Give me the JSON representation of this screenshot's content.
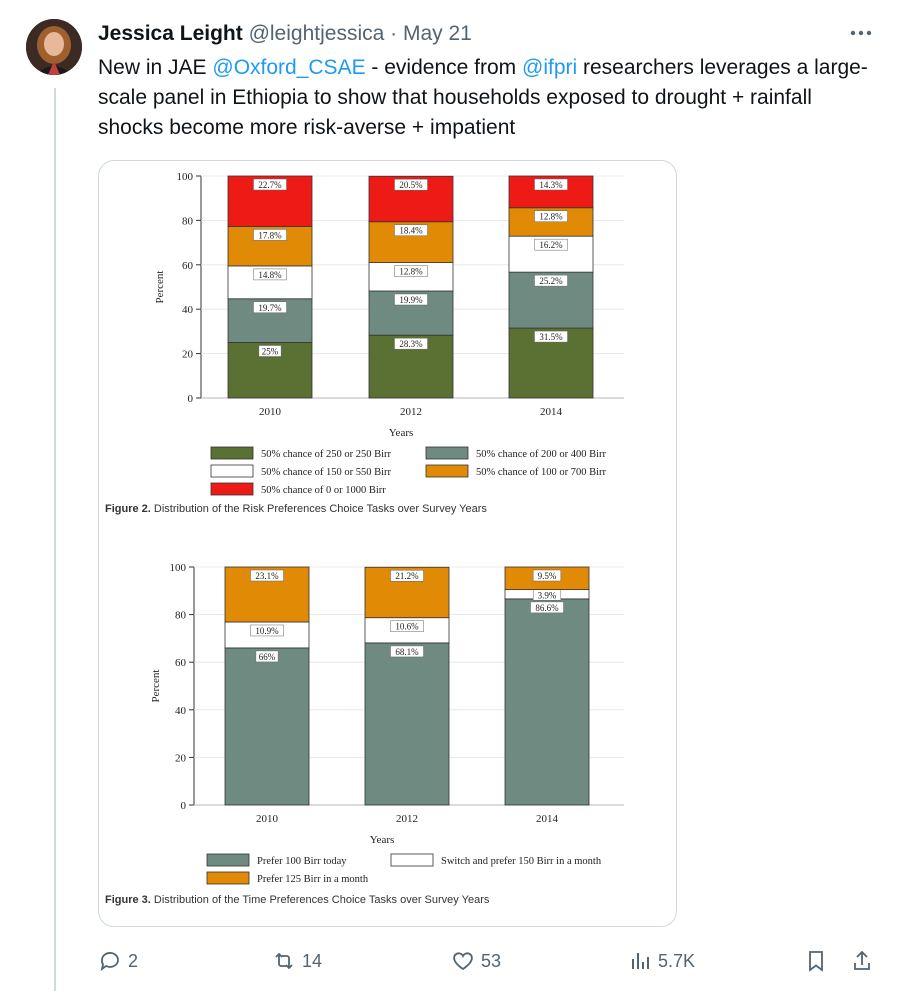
{
  "tweet": {
    "author_name": "Jessica Leight",
    "author_handle": "@leightjessica",
    "separator": "·",
    "date": "May 21",
    "more_label": "•••",
    "text_1": "New in JAE ",
    "mention_1": "@Oxford_CSAE",
    "text_2": " - evidence from ",
    "mention_2": "@ifpri",
    "text_3": " researchers leverages a large-scale panel in Ethiopia to show that households exposed to drought + rainfall shocks become more risk-averse + impatient"
  },
  "actions": {
    "replies": "2",
    "reposts": "14",
    "likes": "53",
    "views": "5.7K"
  },
  "colors": {
    "accent": "#1d9bf0",
    "muted": "#536471",
    "dark_green": "#5a7133",
    "gray_green": "#6f8a80",
    "white": "#ffffff",
    "orange": "#e08a06",
    "red": "#ee1a16"
  },
  "chart_data": [
    {
      "type": "bar",
      "stacked": true,
      "categories": [
        "2010",
        "2012",
        "2014"
      ],
      "ylabel": "Percent",
      "xlabel": "Years",
      "ylim": [
        0,
        100
      ],
      "yticks": [
        "0",
        "20",
        "40",
        "60",
        "80",
        "100"
      ],
      "caption_bold": "Figure 2.",
      "caption": " Distribution of the Risk Preferences Choice Tasks over Survey Years",
      "series": [
        {
          "name": "50% chance of 250 or 250 Birr",
          "color": "#5a7133",
          "values": [
            25,
            28.3,
            31.5
          ],
          "labels": [
            "25%",
            "28.3%",
            "31.5%"
          ]
        },
        {
          "name": "50% chance of 200 or 400 Birr",
          "color": "#6f8a80",
          "values": [
            19.7,
            19.9,
            25.2
          ],
          "labels": [
            "19.7%",
            "19.9%",
            "25.2%"
          ]
        },
        {
          "name": "50% chance of 150 or 550 Birr",
          "color": "#ffffff",
          "values": [
            14.8,
            12.8,
            16.2
          ],
          "labels": [
            "14.8%",
            "12.8%",
            "16.2%"
          ]
        },
        {
          "name": "50% chance of 100 or 700 Birr",
          "color": "#e08a06",
          "values": [
            17.8,
            18.4,
            12.8
          ],
          "labels": [
            "17.8%",
            "18.4%",
            "12.8%"
          ]
        },
        {
          "name": "50% chance of 0 or 1000 Birr",
          "color": "#ee1a16",
          "values": [
            22.7,
            20.5,
            14.3
          ],
          "labels": [
            "22.7%",
            "20.5%",
            "14.3%"
          ]
        }
      ]
    },
    {
      "type": "bar",
      "stacked": true,
      "categories": [
        "2010",
        "2012",
        "2014"
      ],
      "ylabel": "Percent",
      "xlabel": "Years",
      "ylim": [
        0,
        100
      ],
      "yticks": [
        "0",
        "20",
        "40",
        "60",
        "80",
        "100"
      ],
      "caption_bold": "Figure 3.",
      "caption": " Distribution of the Time Preferences Choice Tasks over Survey Years",
      "series": [
        {
          "name": "Prefer 100 Birr today",
          "color": "#6f8a80",
          "values": [
            66,
            68.1,
            86.6
          ],
          "labels": [
            "66%",
            "68.1%",
            "86.6%"
          ]
        },
        {
          "name": "Switch and prefer 150 Birr in a month",
          "color": "#ffffff",
          "values": [
            10.9,
            10.6,
            3.9
          ],
          "labels": [
            "10.9%",
            "10.6%",
            "3.9%"
          ]
        },
        {
          "name": "Prefer 125 Birr in a month",
          "color": "#e08a06",
          "values": [
            23.1,
            21.2,
            9.5
          ],
          "labels": [
            "23.1%",
            "21.2%",
            "9.5%"
          ]
        }
      ]
    }
  ]
}
